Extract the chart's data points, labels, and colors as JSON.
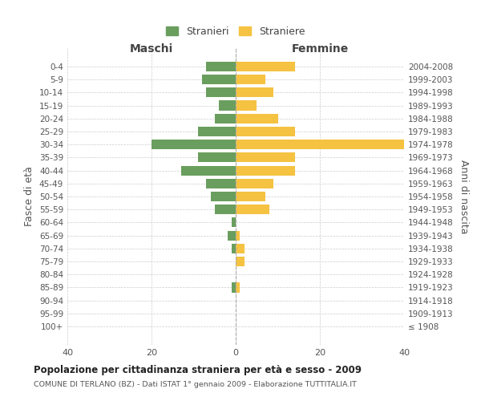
{
  "age_groups": [
    "0-4",
    "5-9",
    "10-14",
    "15-19",
    "20-24",
    "25-29",
    "30-34",
    "35-39",
    "40-44",
    "45-49",
    "50-54",
    "55-59",
    "60-64",
    "65-69",
    "70-74",
    "75-79",
    "80-84",
    "85-89",
    "90-94",
    "95-99",
    "100+"
  ],
  "birth_years": [
    "2004-2008",
    "1999-2003",
    "1994-1998",
    "1989-1993",
    "1984-1988",
    "1979-1983",
    "1974-1978",
    "1969-1973",
    "1964-1968",
    "1959-1963",
    "1954-1958",
    "1949-1953",
    "1944-1948",
    "1939-1943",
    "1934-1938",
    "1929-1933",
    "1924-1928",
    "1919-1923",
    "1914-1918",
    "1909-1913",
    "≤ 1908"
  ],
  "maschi": [
    7,
    8,
    7,
    4,
    5,
    9,
    20,
    9,
    13,
    7,
    6,
    5,
    1,
    2,
    1,
    0,
    0,
    1,
    0,
    0,
    0
  ],
  "femmine": [
    14,
    7,
    9,
    5,
    10,
    14,
    40,
    14,
    14,
    9,
    7,
    8,
    0,
    1,
    2,
    2,
    0,
    1,
    0,
    0,
    0
  ],
  "maschi_color": "#6a9e5e",
  "femmine_color": "#f5c242",
  "title": "Popolazione per cittadinanza straniera per età e sesso - 2009",
  "subtitle": "COMUNE DI TERLANO (BZ) - Dati ISTAT 1° gennaio 2009 - Elaborazione TUTTITALIA.IT",
  "ylabel_left": "Fasce di età",
  "ylabel_right": "Anni di nascita",
  "xlabel_left": "Maschi",
  "xlabel_right": "Femmine",
  "legend_maschi": "Stranieri",
  "legend_femmine": "Straniere",
  "xlim": 40,
  "background_color": "#ffffff",
  "grid_color": "#cccccc"
}
